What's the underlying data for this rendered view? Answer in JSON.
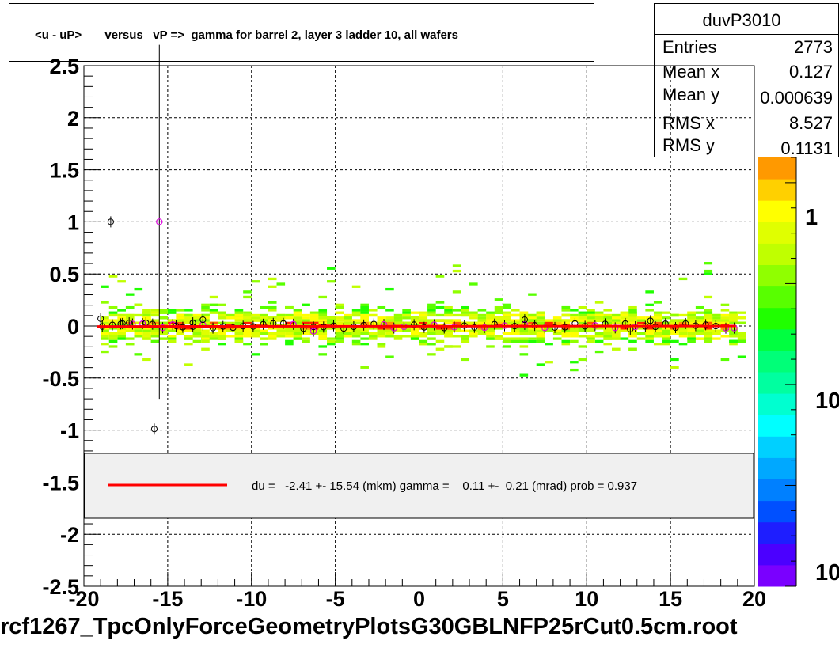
{
  "title": "<u - uP>       versus   vP =>  gamma for barrel 2, layer 3 ladder 10, all wafers",
  "stats": {
    "name": "duvP3010",
    "rows": [
      {
        "label": "Entries",
        "value": "2773"
      },
      {
        "label": "Mean x",
        "value": "0.127"
      },
      {
        "label": "Mean y",
        "value": "0.000639"
      },
      {
        "label": "RMS x",
        "value": "8.527"
      },
      {
        "label": "RMS y",
        "value": "0.1131"
      }
    ]
  },
  "legend": {
    "text": "du =   -2.41 +- 15.54 (mkm) gamma =    0.11 +-  0.21 (mrad) prob = 0.937",
    "line_color": "#ff0000"
  },
  "footer": "rcf1267_TpcOnlyForceGeometryPlotsG30GBLNFP25rCut0.5cm.root",
  "colorbar": {
    "labels": [
      "1",
      "10",
      "10"
    ],
    "palette": [
      "#7a00ff",
      "#4b00ff",
      "#1e1eff",
      "#0050ff",
      "#0080ff",
      "#00a8ff",
      "#00d0ff",
      "#00ffff",
      "#00ffd0",
      "#00ffa0",
      "#00ff78",
      "#00ff40",
      "#20ff00",
      "#58ff00",
      "#90ff00",
      "#c0ff00",
      "#e0ff00",
      "#ffff00",
      "#ffd000",
      "#ff9900"
    ]
  },
  "chart_data": {
    "type": "heatmap",
    "xlim": [
      -20,
      20
    ],
    "ylim": [
      -2.5,
      2.5
    ],
    "x_ticks": [
      "-20",
      "-15",
      "-10",
      "-5",
      "0",
      "5",
      "10",
      "15",
      "20"
    ],
    "y_ticks": [
      "-2.5",
      "-2",
      "-1.5",
      "-1",
      "-0.5",
      "0",
      "0.5",
      "1",
      "1.5",
      "2",
      "2.5"
    ],
    "grid": true,
    "fit_line": {
      "slope": 0.00011,
      "intercept": -0.0024
    },
    "profile_points": [
      {
        "x": -19,
        "y": 0.07
      },
      {
        "x": -18.4,
        "y": 1.0
      },
      {
        "x": -17.8,
        "y": 0.02
      },
      {
        "x": -17.3,
        "y": 0.03
      },
      {
        "x": -16.3,
        "y": 0.03
      },
      {
        "x": -15.8,
        "y": -0.99
      },
      {
        "x": -15.5,
        "y": 1.0,
        "err": 1.7
      },
      {
        "x": -14.5,
        "y": 0.0
      },
      {
        "x": -13.5,
        "y": 0.03
      },
      {
        "x": -12.9,
        "y": 0.06
      },
      {
        "x": -6.3,
        "y": -0.05
      },
      {
        "x": 6.3,
        "y": 0.06
      },
      {
        "x": 12.6,
        "y": -0.03
      },
      {
        "x": 13.8,
        "y": 0.05
      },
      {
        "x": 18.8,
        "y": -0.02
      }
    ]
  }
}
